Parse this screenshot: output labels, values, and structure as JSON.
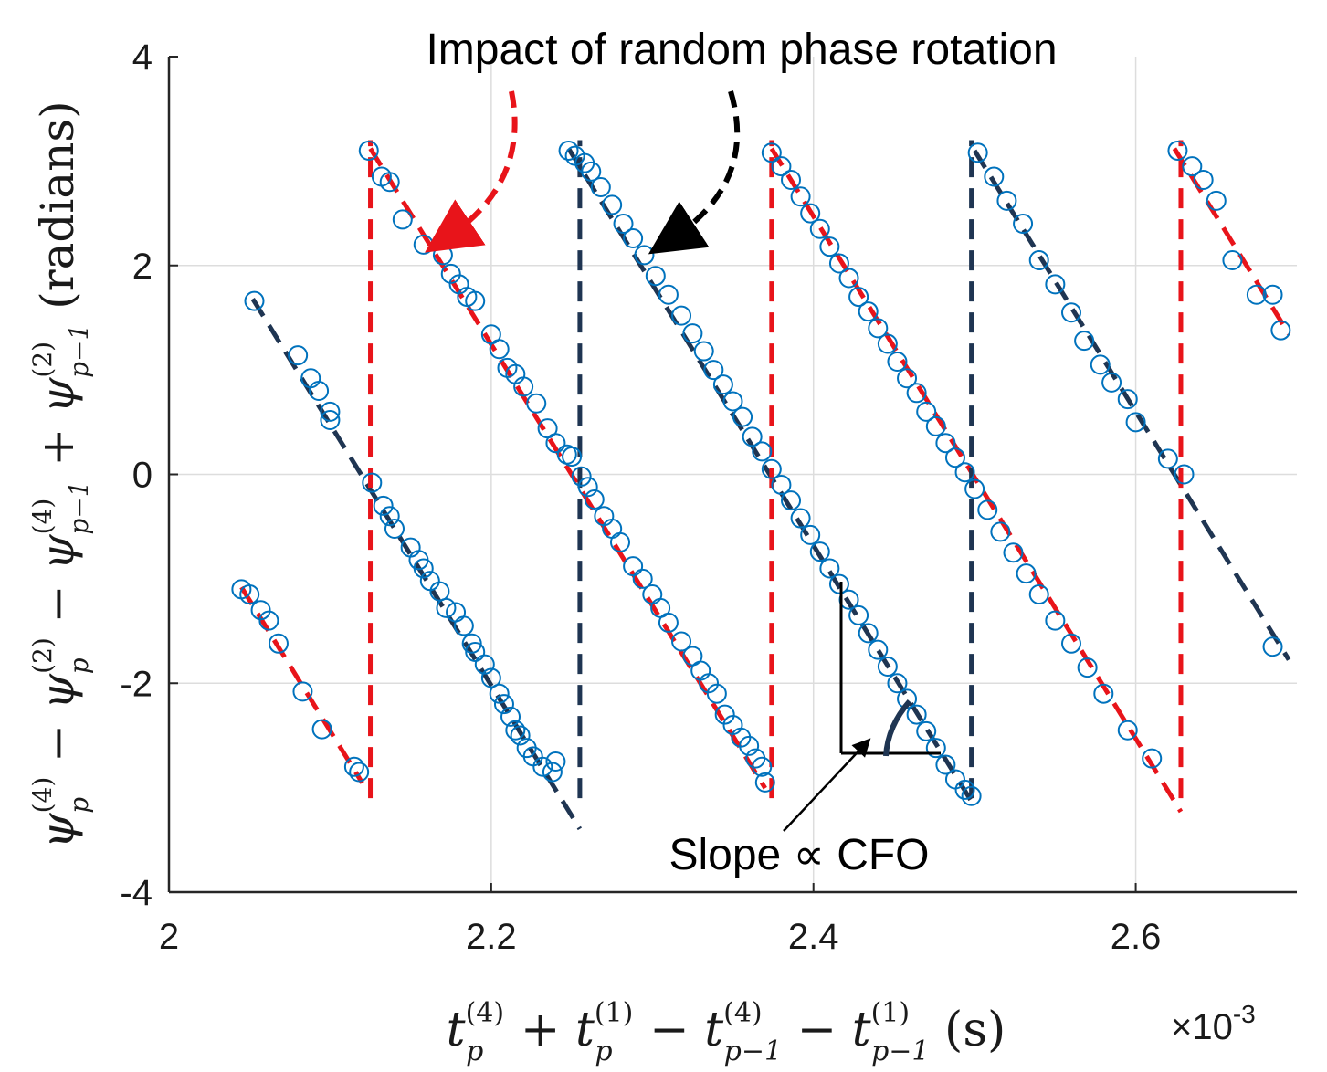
{
  "chart_data": {
    "type": "scatter",
    "title": "",
    "xlabel": {
      "main_1": "t",
      "sup_1": "(4)",
      "sub_1": "p",
      "plus": " + ",
      "main_2": "t",
      "sup_2": "(1)",
      "sub_2": "p",
      "minus_1": " − ",
      "main_3": "t",
      "sup_3": "(4)",
      "sub_3": "p−1",
      "minus_2": " − ",
      "main_4": "t",
      "sup_4": "(1)",
      "sub_4": "p−1",
      "unit": " (s)"
    },
    "ylabel": {
      "main_1": "ψ",
      "sup_1": "(4)",
      "sub_1": "p",
      "op_1": " − ",
      "main_2": "ψ",
      "sup_2": "(2)",
      "sub_2": "p",
      "op_2": " − ",
      "main_3": "ψ",
      "sup_3": "(4)",
      "sub_3": "p−1",
      "op_3": " + ",
      "main_4": "ψ",
      "sup_4": "(2)",
      "sub_4": "p−1",
      "unit": " (radians)"
    },
    "x_scale_label": "×10",
    "x_scale_exp": "-3",
    "xlim": [
      2.0,
      2.7
    ],
    "ylim": [
      -4,
      4
    ],
    "xticks": [
      2.0,
      2.2,
      2.4,
      2.6
    ],
    "xtick_labels": [
      "2",
      "2.2",
      "2.4",
      "2.6"
    ],
    "yticks": [
      -4,
      -2,
      0,
      2,
      4
    ],
    "ytick_labels": [
      "-4",
      "-2",
      "0",
      "2",
      "4"
    ],
    "grid": true,
    "colors": {
      "marker": "#0072bd",
      "fit_red": "#e8141a",
      "fit_navy": "#1f3552",
      "grid": "#dddddd",
      "axis": "#262626"
    },
    "slope_per_ms": -25.0,
    "segments": [
      {
        "x0": 2.045,
        "x1": 2.12,
        "y0": -1.08,
        "color": "red"
      },
      {
        "x0": 2.052,
        "x1": 2.255,
        "y0": 1.68,
        "color": "navy"
      },
      {
        "x0": 2.125,
        "x1": 2.37,
        "y0": 3.12,
        "color": "red"
      },
      {
        "x0": 2.248,
        "x1": 2.498,
        "y0": 3.12,
        "color": "navy"
      },
      {
        "x0": 2.374,
        "x1": 2.628,
        "y0": 3.12,
        "color": "red"
      },
      {
        "x0": 2.5,
        "x1": 2.695,
        "y0": 3.1,
        "color": "navy"
      },
      {
        "x0": 2.624,
        "x1": 2.695,
        "y0": 3.12,
        "color": "red"
      }
    ],
    "wrap_jumps": [
      {
        "x": 2.125,
        "color": "red"
      },
      {
        "x": 2.255,
        "color": "navy"
      },
      {
        "x": 2.374,
        "color": "red"
      },
      {
        "x": 2.498,
        "color": "navy"
      },
      {
        "x": 2.628,
        "color": "red"
      }
    ],
    "samples": [
      [
        2.045,
        -1.1
      ],
      [
        2.05,
        -1.15
      ],
      [
        2.057,
        -1.3
      ],
      [
        2.062,
        -1.4
      ],
      [
        2.068,
        -1.62
      ],
      [
        2.083,
        -2.08
      ],
      [
        2.095,
        -2.44
      ],
      [
        2.115,
        -2.8
      ],
      [
        2.118,
        -2.85
      ],
      [
        2.053,
        1.66
      ],
      [
        2.08,
        1.14
      ],
      [
        2.088,
        0.92
      ],
      [
        2.093,
        0.8
      ],
      [
        2.1,
        0.6
      ],
      [
        2.1,
        0.52
      ],
      [
        2.126,
        -0.08
      ],
      [
        2.133,
        -0.3
      ],
      [
        2.137,
        -0.4
      ],
      [
        2.14,
        -0.52
      ],
      [
        2.15,
        -0.7
      ],
      [
        2.155,
        -0.82
      ],
      [
        2.158,
        -0.9
      ],
      [
        2.162,
        -1.02
      ],
      [
        2.168,
        -1.12
      ],
      [
        2.172,
        -1.28
      ],
      [
        2.178,
        -1.32
      ],
      [
        2.183,
        -1.45
      ],
      [
        2.188,
        -1.62
      ],
      [
        2.19,
        -1.7
      ],
      [
        2.196,
        -1.82
      ],
      [
        2.2,
        -1.95
      ],
      [
        2.205,
        -2.1
      ],
      [
        2.208,
        -2.2
      ],
      [
        2.212,
        -2.32
      ],
      [
        2.215,
        -2.45
      ],
      [
        2.218,
        -2.5
      ],
      [
        2.222,
        -2.62
      ],
      [
        2.226,
        -2.7
      ],
      [
        2.232,
        -2.8
      ],
      [
        2.238,
        -2.85
      ],
      [
        2.24,
        -2.75
      ],
      [
        2.124,
        3.1
      ],
      [
        2.132,
        2.85
      ],
      [
        2.137,
        2.8
      ],
      [
        2.145,
        2.44
      ],
      [
        2.158,
        2.2
      ],
      [
        2.17,
        2.1
      ],
      [
        2.175,
        1.92
      ],
      [
        2.18,
        1.82
      ],
      [
        2.185,
        1.7
      ],
      [
        2.19,
        1.66
      ],
      [
        2.2,
        1.34
      ],
      [
        2.205,
        1.2
      ],
      [
        2.21,
        1.02
      ],
      [
        2.215,
        0.96
      ],
      [
        2.22,
        0.84
      ],
      [
        2.228,
        0.68
      ],
      [
        2.235,
        0.44
      ],
      [
        2.24,
        0.3
      ],
      [
        2.247,
        0.19
      ],
      [
        2.25,
        0.17
      ],
      [
        2.256,
        -0.02
      ],
      [
        2.26,
        -0.12
      ],
      [
        2.264,
        -0.24
      ],
      [
        2.27,
        -0.4
      ],
      [
        2.275,
        -0.52
      ],
      [
        2.28,
        -0.65
      ],
      [
        2.288,
        -0.88
      ],
      [
        2.294,
        -1.0
      ],
      [
        2.3,
        -1.15
      ],
      [
        2.305,
        -1.28
      ],
      [
        2.31,
        -1.42
      ],
      [
        2.318,
        -1.6
      ],
      [
        2.325,
        -1.74
      ],
      [
        2.33,
        -1.88
      ],
      [
        2.335,
        -2.0
      ],
      [
        2.34,
        -2.1
      ],
      [
        2.345,
        -2.3
      ],
      [
        2.35,
        -2.4
      ],
      [
        2.355,
        -2.52
      ],
      [
        2.36,
        -2.6
      ],
      [
        2.364,
        -2.72
      ],
      [
        2.368,
        -2.8
      ],
      [
        2.37,
        -2.95
      ],
      [
        2.248,
        3.1
      ],
      [
        2.252,
        3.05
      ],
      [
        2.258,
        2.98
      ],
      [
        2.262,
        2.9
      ],
      [
        2.268,
        2.75
      ],
      [
        2.275,
        2.58
      ],
      [
        2.282,
        2.4
      ],
      [
        2.288,
        2.26
      ],
      [
        2.295,
        2.1
      ],
      [
        2.302,
        1.9
      ],
      [
        2.31,
        1.72
      ],
      [
        2.318,
        1.52
      ],
      [
        2.325,
        1.35
      ],
      [
        2.332,
        1.18
      ],
      [
        2.338,
        1.0
      ],
      [
        2.344,
        0.86
      ],
      [
        2.35,
        0.7
      ],
      [
        2.356,
        0.55
      ],
      [
        2.362,
        0.36
      ],
      [
        2.368,
        0.22
      ],
      [
        2.374,
        0.05
      ],
      [
        2.38,
        -0.1
      ],
      [
        2.386,
        -0.25
      ],
      [
        2.392,
        -0.42
      ],
      [
        2.398,
        -0.58
      ],
      [
        2.404,
        -0.74
      ],
      [
        2.41,
        -0.9
      ],
      [
        2.416,
        -1.05
      ],
      [
        2.422,
        -1.2
      ],
      [
        2.428,
        -1.35
      ],
      [
        2.434,
        -1.52
      ],
      [
        2.44,
        -1.68
      ],
      [
        2.446,
        -1.84
      ],
      [
        2.452,
        -2.0
      ],
      [
        2.458,
        -2.15
      ],
      [
        2.464,
        -2.3
      ],
      [
        2.47,
        -2.46
      ],
      [
        2.476,
        -2.62
      ],
      [
        2.482,
        -2.78
      ],
      [
        2.488,
        -2.92
      ],
      [
        2.494,
        -3.02
      ],
      [
        2.498,
        -3.08
      ],
      [
        2.374,
        3.08
      ],
      [
        2.38,
        2.95
      ],
      [
        2.386,
        2.82
      ],
      [
        2.392,
        2.66
      ],
      [
        2.398,
        2.5
      ],
      [
        2.404,
        2.35
      ],
      [
        2.41,
        2.18
      ],
      [
        2.416,
        2.02
      ],
      [
        2.422,
        1.88
      ],
      [
        2.428,
        1.7
      ],
      [
        2.434,
        1.56
      ],
      [
        2.44,
        1.4
      ],
      [
        2.446,
        1.25
      ],
      [
        2.452,
        1.08
      ],
      [
        2.458,
        0.92
      ],
      [
        2.464,
        0.78
      ],
      [
        2.47,
        0.6
      ],
      [
        2.476,
        0.46
      ],
      [
        2.482,
        0.3
      ],
      [
        2.488,
        0.16
      ],
      [
        2.494,
        0.02
      ],
      [
        2.5,
        -0.14
      ],
      [
        2.508,
        -0.34
      ],
      [
        2.516,
        -0.55
      ],
      [
        2.524,
        -0.75
      ],
      [
        2.532,
        -0.95
      ],
      [
        2.54,
        -1.15
      ],
      [
        2.55,
        -1.4
      ],
      [
        2.56,
        -1.62
      ],
      [
        2.57,
        -1.85
      ],
      [
        2.58,
        -2.1
      ],
      [
        2.595,
        -2.45
      ],
      [
        2.61,
        -2.72
      ],
      [
        2.502,
        3.08
      ],
      [
        2.512,
        2.85
      ],
      [
        2.52,
        2.62
      ],
      [
        2.53,
        2.4
      ],
      [
        2.54,
        2.05
      ],
      [
        2.55,
        1.82
      ],
      [
        2.56,
        1.55
      ],
      [
        2.568,
        1.28
      ],
      [
        2.578,
        1.05
      ],
      [
        2.585,
        0.88
      ],
      [
        2.595,
        0.72
      ],
      [
        2.6,
        0.5
      ],
      [
        2.62,
        0.15
      ],
      [
        2.63,
        0.0
      ],
      [
        2.626,
        3.1
      ],
      [
        2.635,
        2.95
      ],
      [
        2.642,
        2.82
      ],
      [
        2.65,
        2.62
      ],
      [
        2.66,
        2.05
      ],
      [
        2.675,
        1.72
      ],
      [
        2.685,
        1.72
      ],
      [
        2.69,
        1.38
      ],
      [
        2.685,
        -1.65
      ]
    ],
    "annotations": {
      "top": "Impact of random phase rotation",
      "slope": "Slope ∝ CFO"
    }
  }
}
